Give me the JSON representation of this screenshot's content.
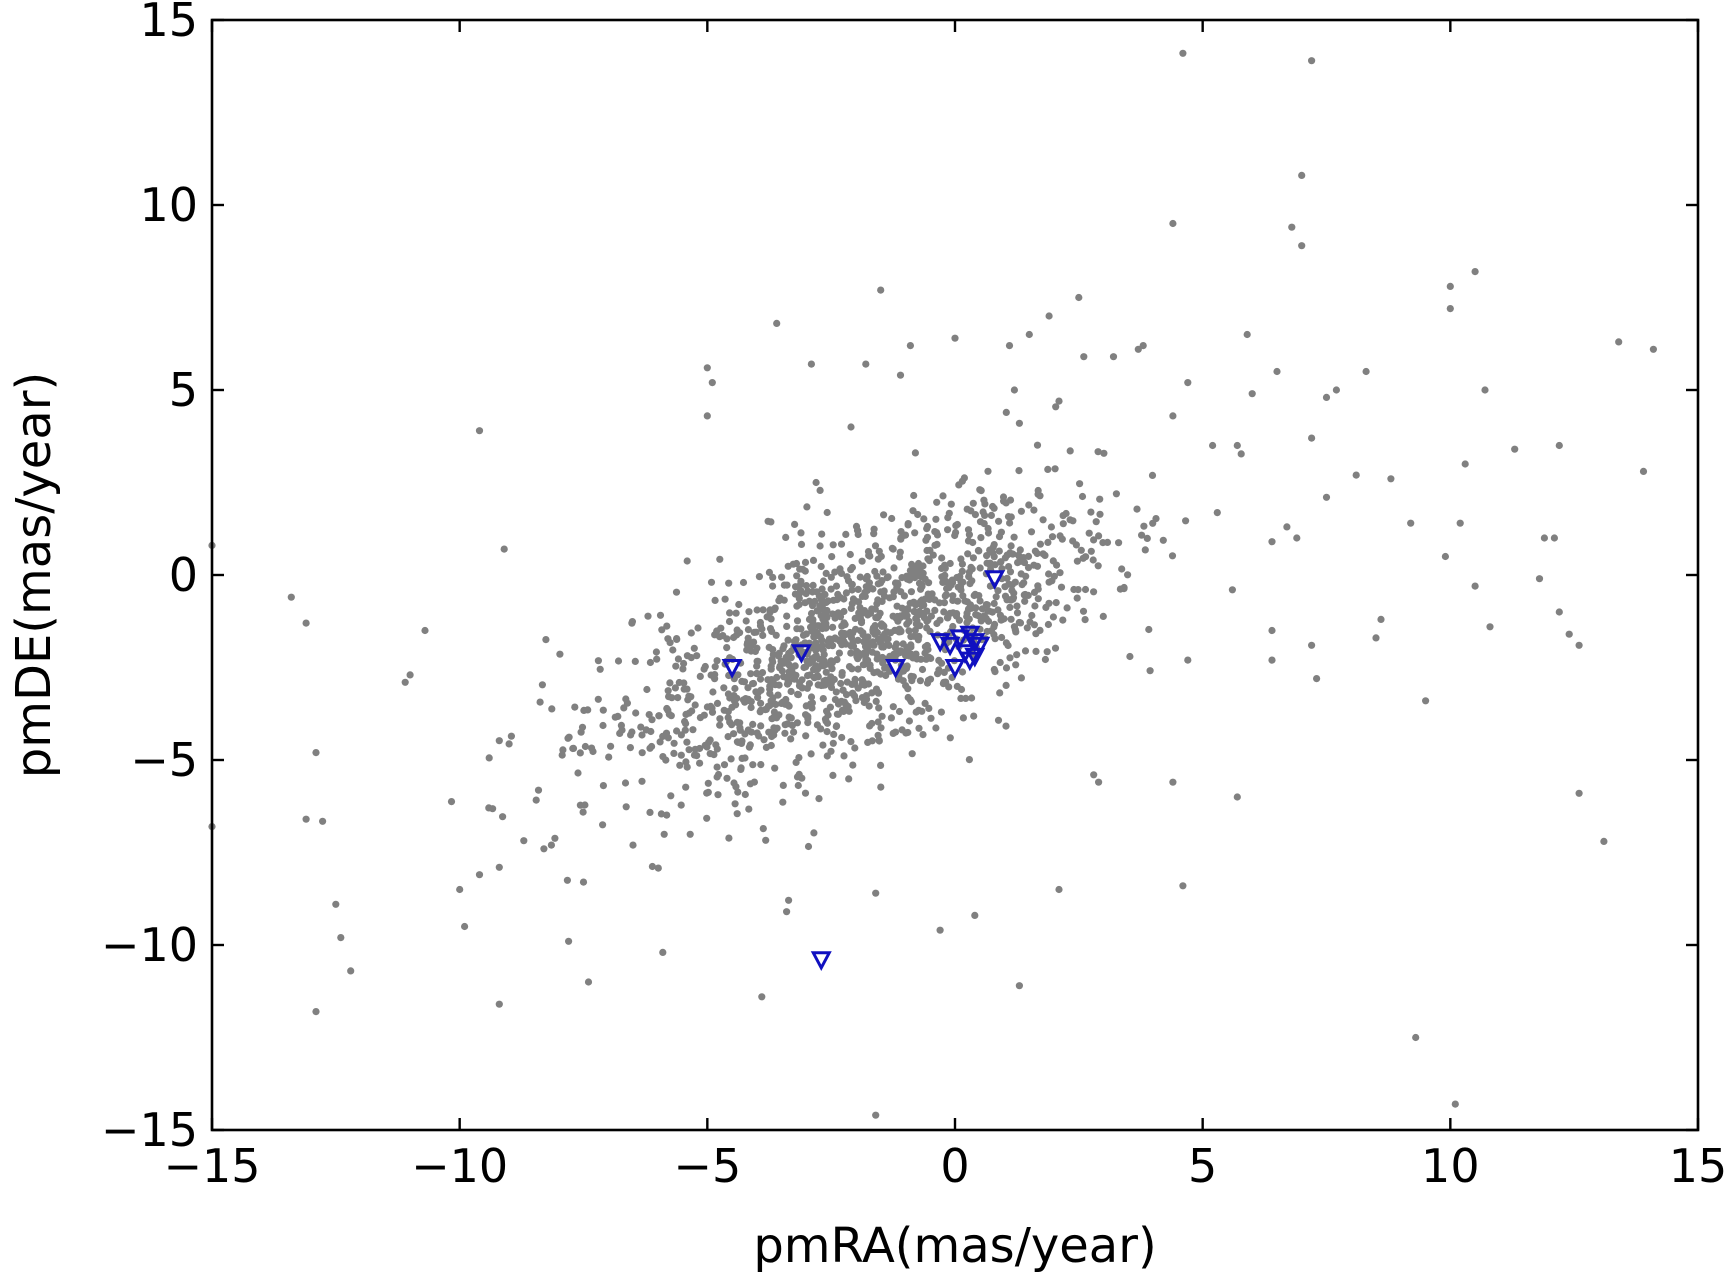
{
  "chart_data": {
    "type": "scatter",
    "title": "",
    "xlabel": "pmRA(mas/year)",
    "ylabel": "pmDE(mas/year)",
    "xlim": [
      -15,
      15
    ],
    "ylim": [
      -15,
      15
    ],
    "xticks": [
      -15,
      -10,
      -5,
      0,
      5,
      10,
      15
    ],
    "yticks": [
      -15,
      -10,
      -5,
      0,
      5,
      10,
      15
    ],
    "xtick_labels": [
      "−15",
      "−10",
      "−5",
      "0",
      "5",
      "10",
      "15"
    ],
    "ytick_labels": [
      "−15",
      "−10",
      "−5",
      "0",
      "5",
      "10",
      "15"
    ],
    "grid": false,
    "ticks_direction": "in",
    "series": [
      {
        "marker": "dot",
        "color": "#808080",
        "points": [
          [
            4.6,
            14.1
          ],
          [
            7.2,
            13.9
          ],
          [
            7.0,
            10.8
          ],
          [
            6.8,
            9.4
          ],
          [
            7.0,
            8.9
          ],
          [
            4.4,
            9.5
          ],
          [
            -1.5,
            7.7
          ],
          [
            10.0,
            7.8
          ],
          [
            10.5,
            8.2
          ],
          [
            10.0,
            7.2
          ],
          [
            2.5,
            7.5
          ],
          [
            1.9,
            7.0
          ],
          [
            -3.6,
            6.8
          ],
          [
            1.5,
            6.5
          ],
          [
            3.8,
            6.2
          ],
          [
            3.7,
            6.1
          ],
          [
            5.9,
            6.5
          ],
          [
            13.4,
            6.3
          ],
          [
            14.1,
            6.1
          ],
          [
            -2.9,
            5.7
          ],
          [
            -5.0,
            5.6
          ],
          [
            -4.9,
            5.2
          ],
          [
            -1.1,
            5.4
          ],
          [
            2.6,
            5.9
          ],
          [
            0.0,
            6.4
          ],
          [
            -1.8,
            5.7
          ],
          [
            -0.9,
            6.2
          ],
          [
            1.1,
            6.2
          ],
          [
            3.2,
            5.9
          ],
          [
            6.5,
            5.5
          ],
          [
            8.3,
            5.5
          ],
          [
            4.7,
            5.2
          ],
          [
            6.0,
            4.9
          ],
          [
            7.7,
            5.0
          ],
          [
            10.7,
            5.0
          ],
          [
            7.5,
            4.8
          ],
          [
            2.1,
            4.7
          ],
          [
            1.2,
            5.0
          ],
          [
            4.4,
            4.3
          ],
          [
            -5.0,
            4.3
          ],
          [
            -9.6,
            3.9
          ],
          [
            -2.1,
            4.0
          ],
          [
            1.3,
            4.1
          ],
          [
            -0.8,
            3.3
          ],
          [
            5.7,
            3.5
          ],
          [
            7.2,
            3.7
          ],
          [
            10.3,
            3.0
          ],
          [
            11.3,
            3.4
          ],
          [
            12.2,
            3.5
          ],
          [
            13.9,
            2.8
          ],
          [
            -15.0,
            0.8
          ],
          [
            -13.4,
            -0.6
          ],
          [
            -13.1,
            -1.3
          ],
          [
            -10.7,
            -1.5
          ],
          [
            -11.0,
            -2.7
          ],
          [
            -11.1,
            -2.9
          ],
          [
            -9.1,
            0.7
          ],
          [
            -12.9,
            -4.8
          ],
          [
            -13.1,
            -6.6
          ],
          [
            -15.0,
            -6.8
          ],
          [
            -12.5,
            -8.9
          ],
          [
            -12.4,
            -9.8
          ],
          [
            -12.2,
            -10.7
          ],
          [
            -12.9,
            -11.8
          ],
          [
            -9.2,
            -11.6
          ],
          [
            -9.6,
            -8.1
          ],
          [
            -9.9,
            -9.5
          ],
          [
            -10.0,
            -8.5
          ],
          [
            -9.2,
            -7.9
          ],
          [
            -8.3,
            -7.4
          ],
          [
            -7.4,
            -11.0
          ],
          [
            -7.8,
            -9.9
          ],
          [
            -7.5,
            -8.3
          ],
          [
            -6.5,
            -7.3
          ],
          [
            -5.9,
            -10.2
          ],
          [
            -3.9,
            -11.4
          ],
          [
            -3.4,
            -9.1
          ],
          [
            -1.6,
            -8.6
          ],
          [
            -0.3,
            -9.6
          ],
          [
            0.4,
            -9.2
          ],
          [
            2.1,
            -8.5
          ],
          [
            1.3,
            -11.1
          ],
          [
            -1.6,
            -14.6
          ],
          [
            4.6,
            -8.4
          ],
          [
            9.3,
            -12.5
          ],
          [
            10.1,
            -14.3
          ],
          [
            13.1,
            -7.2
          ],
          [
            12.6,
            -5.9
          ],
          [
            5.7,
            -6.0
          ],
          [
            4.4,
            -5.6
          ],
          [
            2.8,
            -5.4
          ],
          [
            2.9,
            -5.6
          ],
          [
            11.9,
            1.0
          ],
          [
            12.1,
            1.0
          ],
          [
            11.8,
            -0.1
          ],
          [
            12.2,
            -1.0
          ],
          [
            12.6,
            -1.9
          ],
          [
            12.4,
            -1.6
          ],
          [
            10.5,
            -0.3
          ],
          [
            10.8,
            -1.4
          ],
          [
            9.2,
            1.4
          ],
          [
            9.5,
            -3.4
          ],
          [
            10.2,
            1.4
          ],
          [
            9.9,
            0.5
          ],
          [
            8.6,
            -1.2
          ],
          [
            8.5,
            -1.7
          ],
          [
            7.3,
            -2.8
          ],
          [
            7.2,
            -1.9
          ],
          [
            8.8,
            2.6
          ],
          [
            8.1,
            2.7
          ],
          [
            6.4,
            0.9
          ],
          [
            6.4,
            -1.5
          ],
          [
            6.4,
            -2.3
          ],
          [
            4.7,
            -2.3
          ],
          [
            5.6,
            -0.4
          ],
          [
            5.2,
            3.5
          ],
          [
            7.5,
            2.1
          ],
          [
            6.9,
            1.0
          ],
          [
            6.7,
            1.3
          ]
        ]
      },
      {
        "marker": "triangle-down",
        "color": "#1010c0",
        "points": [
          [
            0.8,
            -0.1
          ],
          [
            -4.5,
            -2.5
          ],
          [
            -3.1,
            -2.1
          ],
          [
            -1.2,
            -2.5
          ],
          [
            -0.3,
            -1.8
          ],
          [
            -0.1,
            -1.9
          ],
          [
            0.1,
            -1.7
          ],
          [
            0.3,
            -1.6
          ],
          [
            0.4,
            -1.8
          ],
          [
            0.5,
            -1.9
          ],
          [
            0.2,
            -2.1
          ],
          [
            0.4,
            -2.2
          ],
          [
            0.3,
            -2.3
          ],
          [
            0.0,
            -2.5
          ],
          [
            -2.7,
            -10.4
          ]
        ]
      }
    ]
  }
}
